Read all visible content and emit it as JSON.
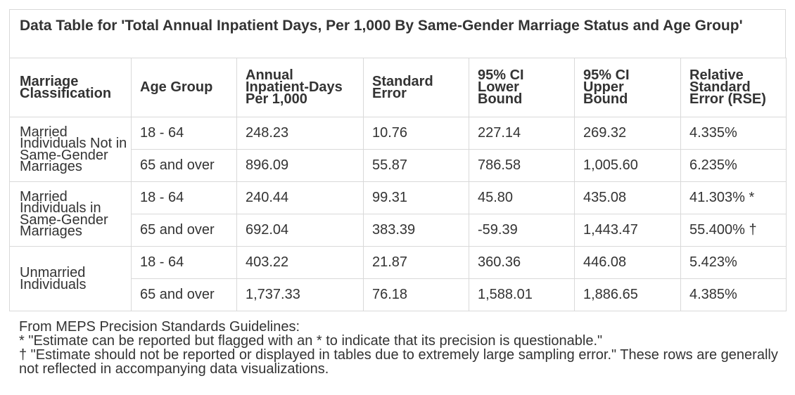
{
  "title": " Data Table for 'Total Annual Inpatient Days, Per 1,000 By Same-Gender Marriage Status and Age Group'",
  "headers": [
    "Marriage Classification",
    "Age Group",
    "Annual Inpatient-Days Per 1,000",
    "Standard Error",
    "95% CI Lower Bound",
    "95% CI Upper Bound",
    "Relative Standard Error (RSE)"
  ],
  "groups": [
    {
      "label": "Married Individuals Not in Same-Gender Marriages",
      "rows": [
        [
          "18 - 64",
          "248.23",
          "10.76",
          "227.14",
          "269.32",
          "4.335%"
        ],
        [
          "65 and over",
          "896.09",
          "55.87",
          "786.58",
          "1,005.60",
          "6.235%"
        ]
      ]
    },
    {
      "label": "Married Individuals in Same-Gender Marriages",
      "rows": [
        [
          "18 - 64",
          "240.44",
          "99.31",
          "45.80",
          "435.08",
          "41.303% *"
        ],
        [
          "65 and over",
          "692.04",
          "383.39",
          "-59.39",
          "1,443.47",
          "55.400% †"
        ]
      ]
    },
    {
      "label": "Unmarried Individuals",
      "rows": [
        [
          "18 - 64",
          "403.22",
          "21.87",
          "360.36",
          "446.08",
          "5.423%"
        ],
        [
          "65 and over",
          "1,737.33",
          "76.18",
          "1,588.01",
          "1,886.65",
          "4.385%"
        ]
      ]
    }
  ],
  "notes": [
    "From MEPS Precision Standards Guidelines:",
    "* \"Estimate can be reported but flagged with an * to indicate that its precision is questionable.\"",
    "† \"Estimate should not be reported or displayed in tables due to extremely large sampling error.\" These rows are generally not reflected in accompanying data visualizations."
  ]
}
